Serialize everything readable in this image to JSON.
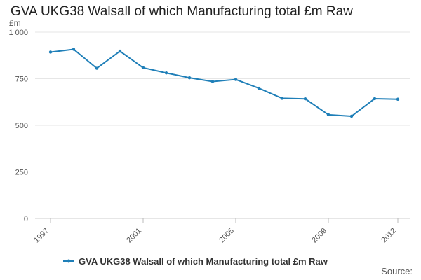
{
  "chart_data": {
    "type": "line",
    "title": "GVA UKG38 Walsall of which Manufacturing total £m Raw",
    "ylabel": "£m",
    "xlabel": "",
    "ylim": [
      0,
      1000
    ],
    "yticks": [
      0,
      250,
      500,
      750,
      1000
    ],
    "ytick_labels": [
      "0",
      "250",
      "500",
      "750",
      "1 000"
    ],
    "xticks": [
      1997,
      2001,
      2005,
      2009,
      2012
    ],
    "xtick_labels": [
      "1997",
      "2001",
      "2005",
      "2009",
      "2012"
    ],
    "grid": true,
    "legend_position": "bottom",
    "x": [
      1997,
      1998,
      1999,
      2000,
      2001,
      2002,
      2003,
      2004,
      2005,
      2006,
      2007,
      2008,
      2009,
      2010,
      2011,
      2012
    ],
    "series": [
      {
        "name": "GVA UKG38 Walsall of which Manufacturing total £m Raw",
        "color": "#1f7fb8",
        "values": [
          893,
          908,
          806,
          898,
          809,
          781,
          755,
          735,
          746,
          699,
          645,
          642,
          557,
          549,
          643,
          640
        ]
      }
    ]
  },
  "source_label": "Source:"
}
